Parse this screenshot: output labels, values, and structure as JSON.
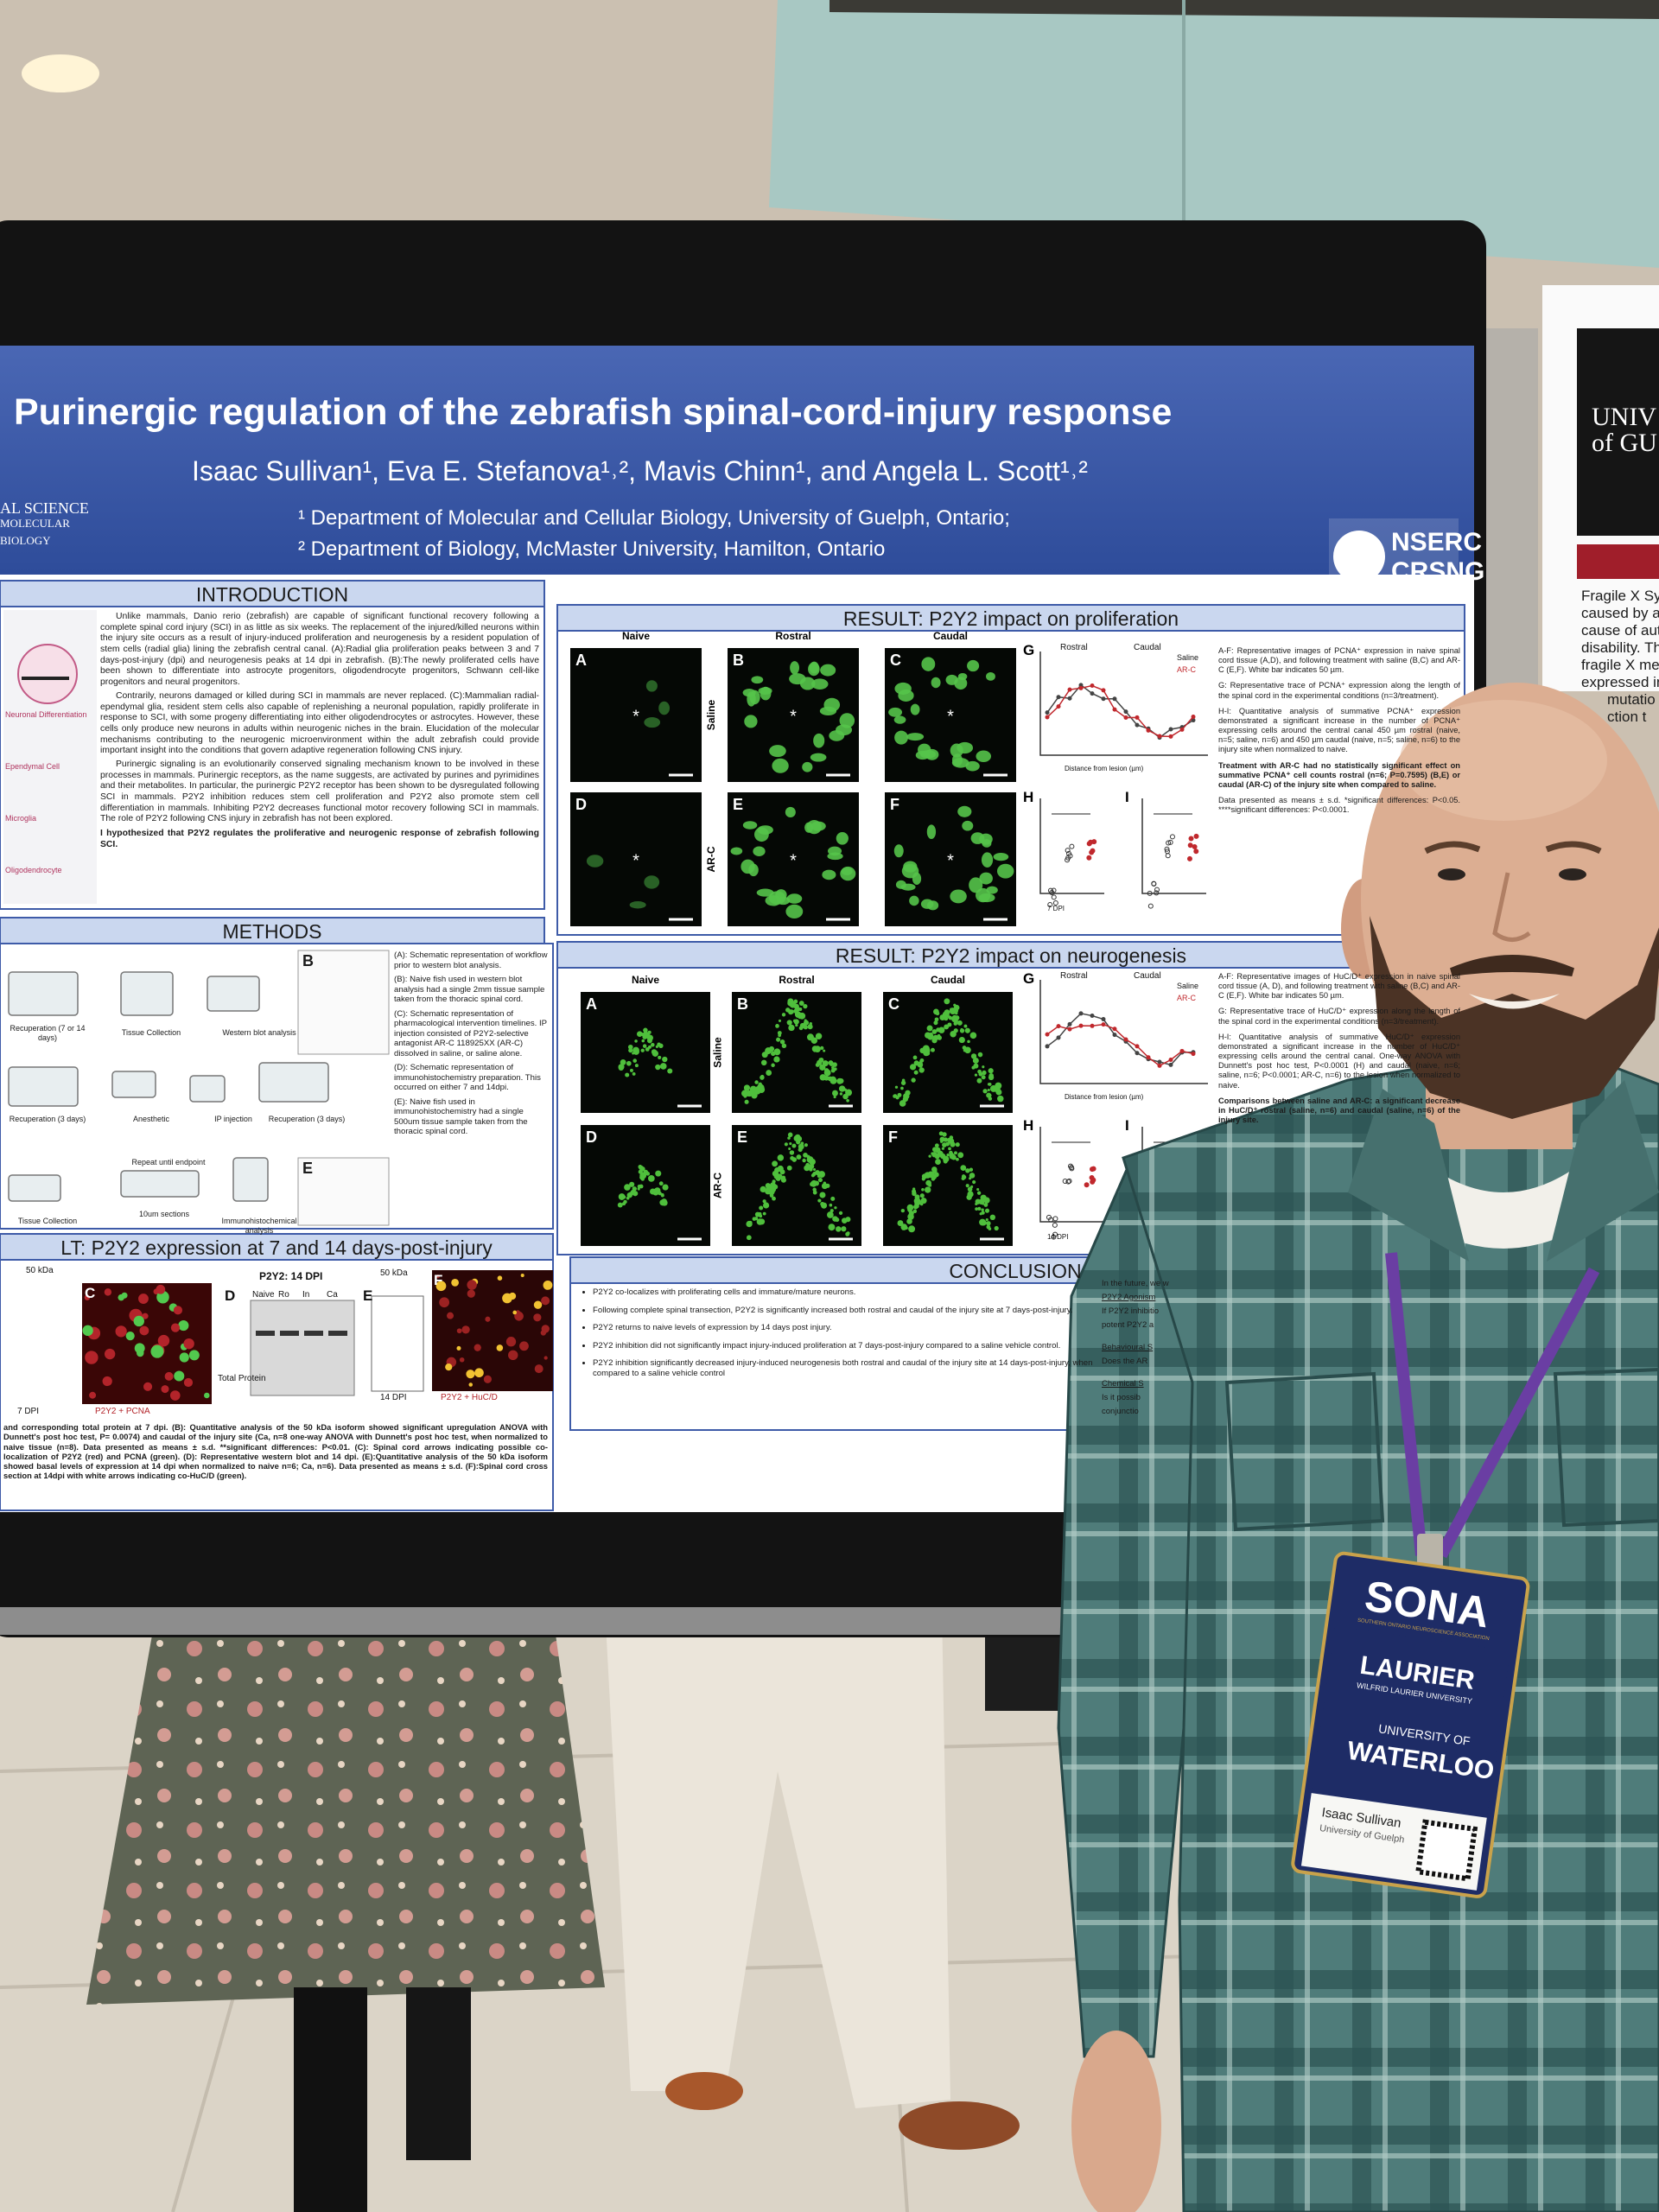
{
  "poster": {
    "title": "Purinergic regulation of the zebrafish spinal-cord-injury response",
    "authors": "Isaac Sullivan¹, Eva E. Stefanova¹˒², Mavis Chinn¹, and Angela L. Scott¹˒²",
    "affiliations": [
      "¹ Department of Molecular and Cellular Biology, University of Guelph, Ontario;",
      "² Department of Biology, McMaster University, Hamilton, Ontario"
    ],
    "left_logo": [
      "AL SCIENCE",
      "MOLECULAR",
      "BIOLOGY"
    ],
    "funder_logo": [
      "NSERC",
      "CRSNG"
    ],
    "introduction": {
      "heading": "INTRODUCTION",
      "paragraphs": [
        "Unlike mammals, Danio rerio (zebrafish) are capable of significant functional recovery following a complete spinal cord injury (SCI) in as little as six weeks. The replacement of the injured/killed neurons within the injury site occurs as a result of injury-induced proliferation and neurogenesis by a resident population of stem cells (radial glia) lining the zebrafish central canal. (A):Radial glia proliferation peaks between 3 and 7 days-post-injury (dpi) and neurogenesis peaks at 14 dpi in zebrafish. (B):The newly proliferated cells have been shown to differentiate into astrocyte progenitors, oligodendrocyte progenitors, Schwann cell-like progenitors and neural progenitors.",
        "Contrarily, neurons damaged or killed during SCI in mammals are never replaced. (C):Mammalian radial-ependymal glia, resident stem cells also capable of replenishing a neuronal population, rapidly proliferate in response to SCI, with some progeny differentiating into either oligodendrocytes or astrocytes. However, these cells only produce new neurons in adults within neurogenic niches in the brain. Elucidation of the molecular mechanisms contributing to the neurogenic microenvironment within the adult zebrafish could provide important insight into the conditions that govern adaptive regeneration following CNS injury.",
        "Purinergic signaling is an evolutionarily conserved signaling mechanism known to be involved in these processes in mammals. Purinergic receptors, as the name suggests, are activated by purines and pyrimidines and their metabolites. In particular, the purinergic P2Y2 receptor has been shown to be dysregulated following SCI in mammals. P2Y2 inhibition reduces stem cell proliferation and P2Y2 also promote stem cell differentiation in mammals. Inhibiting P2Y2 decreases functional motor recovery following SCI in mammals. The role of P2Y2 following CNS injury in zebrafish has not been explored."
      ],
      "hypothesis": "I hypothesized that P2Y2 regulates the proliferative and neurogenic response of zebrafish following SCI.",
      "figure_labels": [
        "Neuronal Differentiation",
        "Ependymal Cell",
        "Microglia",
        "Oligodendrocyte"
      ]
    },
    "methods": {
      "heading": "METHODS",
      "steps": [
        "Recuperation (7 or 14 days)",
        "Tissue Collection",
        "Western blot analysis",
        "Recuperation (3 days)",
        "Anesthetic",
        "IP injection",
        "Recuperation (3 days)",
        "Repeat until endpoint",
        "Tissue Collection",
        "10um sections",
        "Immunohistochemical analysis"
      ],
      "panel_letters": [
        "B",
        "E"
      ],
      "notes": [
        "(A): Schematic representation of workflow prior to western blot analysis.",
        "(B): Naive fish used in western blot analysis had a single 2mm tissue sample taken from the thoracic spinal cord.",
        "(C): Schematic representation of pharmacological intervention timelines. IP injection consisted of P2Y2-selective antagonist AR-C 118925XX (AR-C) dissolved in saline, or saline alone.",
        "(D): Schematic representation of immunohistochemistry preparation. This occurred on either 7 and 14dpi.",
        "(E): Naive fish used in immunohistochemistry had a single 500um tissue sample taken from the thoracic spinal cord."
      ]
    },
    "proliferation": {
      "heading": "RESULT: P2Y2 impact on proliferation",
      "columns": [
        "Naive",
        "Rostral",
        "Caudal"
      ],
      "rows": [
        "Saline",
        "AR-C"
      ],
      "panels": [
        "A",
        "B",
        "C",
        "D",
        "E",
        "F"
      ],
      "center_marker": "*",
      "graph_labels": [
        "G",
        "H",
        "I"
      ],
      "graph_text": [
        "Rostral",
        "Caudal",
        "Saline",
        "AR-C",
        "Distance from lesion (µm)",
        "7 DPI"
      ],
      "notes": [
        "A-F: Representative images of PCNA⁺ expression in naive spinal cord tissue (A,D), and following treatment with saline (B,C) and AR-C (E,F). White bar indicates 50 µm.",
        "G: Representative trace of PCNA⁺ expression along the length of the spinal cord in the experimental conditions (n=3/treatment).",
        "H-I: Quantitative analysis of summative PCNA⁺ expression demonstrated a significant increase in the number of PCNA⁺ expressing cells around the central canal 450 µm rostral (naive, n=5; saline, n=6) and 450 µm caudal (naive, n=5; saline, n=6) to the injury site when normalized to naive.",
        "Treatment with AR-C had no statistically significant effect on summative PCNA⁺ cell counts rostral (n=6; P=0.7595) (B,E) or caudal (AR-C) of the injury site when compared to saline.",
        "Data presented as means ± s.d. *significant differences: P<0.05. ****significant differences: P<0.0001."
      ]
    },
    "neurogenesis": {
      "heading": "RESULT: P2Y2 impact on neurogenesis",
      "columns": [
        "Naive",
        "Rostral",
        "Caudal"
      ],
      "rows": [
        "Saline",
        "AR-C"
      ],
      "panels": [
        "A",
        "B",
        "C",
        "D",
        "E",
        "F"
      ],
      "graph_labels": [
        "G",
        "H",
        "I"
      ],
      "graph_text": [
        "Rostral",
        "Caudal",
        "Saline",
        "AR-C",
        "Distance from lesion (µm)",
        "14 DPI"
      ],
      "notes": [
        "A-F: Representative images of HuC/D⁺ expression in naive spinal cord tissue (A, D), and following treatment with saline (B,C) and AR-C (E,F). White bar indicates 50 µm.",
        "G: Representative trace of HuC/D⁺ expression along the length of the spinal cord in the experimental conditions (n=3/treatment).",
        "H-I: Quantitative analysis of summative HuC/D⁺ expression demonstrated a significant increase in the number of HuC/D⁺ expressing cells around the central canal. One-way ANOVA with Dunnett's post hoc test, P<0.0001 (H) and caudal (naive, n=6; saline, n=6; P<0.0001; AR-C, n=6) to the lesion when normalized to naive.",
        "Comparisons between saline and AR-C: a significant decrease in HuC/D⁺ rostral (saline, n=6) and caudal (saline, n=6) of the injury site."
      ]
    },
    "expression": {
      "heading": "LT: P2Y2 expression at 7 and 14 days-post-injury",
      "panel_letters": [
        "C",
        "D",
        "E",
        "F"
      ],
      "labels": [
        "50 kDa",
        "7 DPI",
        "P2Y2 + PCNA",
        "P2Y2: 14 DPI",
        "Naive",
        "Ro",
        "In",
        "Ca",
        "Total Protein",
        "50 kDa",
        "14 DPI",
        "P2Y2 + HuC/D"
      ],
      "caption": "and corresponding total protein at 7 dpi. (B): Quantitative analysis of the 50 kDa isoform showed significant upregulation ANOVA with Dunnett's post hoc test, P= 0.0074) and caudal of the injury site (Ca, n=8 one-way ANOVA with Dunnett's post hoc test, when normalized to naive tissue (n=8). Data presented as means ± s.d. **significant differences: P<0.01. (C): Spinal cord arrows indicating possible co-localization of P2Y2 (red) and PCNA (green). (D): Representative western blot and 14 dpi. (E):Quantitative analysis of the 50 kDa isoform showed basal levels of expression at 14 dpi when normalized to naive n=6; Ca, n=6). Data presented as means ± s.d. (F):Spinal cord cross section at 14dpi with white arrows indicating co-HuC/D (green)."
    },
    "conclusion": {
      "heading": "CONCLUSION",
      "bullets": [
        "P2Y2 co-localizes with proliferating cells and immature/mature neurons.",
        "Following complete spinal transection, P2Y2 is significantly increased both rostral and caudal of the injury site at 7 days-post-injury.",
        "P2Y2 returns to naive levels of expression by 14 days post injury.",
        "P2Y2 inhibition did not significantly impact injury-induced proliferation at 7 days-post-injury compared to a saline vehicle control.",
        "P2Y2 inhibition significantly decreased injury-induced neurogenesis both rostral and caudal of the injury site at 14 days-post-injury, when compared to a saline vehicle control"
      ],
      "future": [
        "In the future, we w",
        "P2Y2 Agonism",
        "If P2Y2 inhibitio",
        "potent P2Y2 a",
        "Behavioural S",
        "Does the AR",
        "Chemical S",
        "Is it possib",
        "conjunctio"
      ]
    }
  },
  "badge": {
    "event": "SONA",
    "event_subtitle": "SOUTHERN ONTARIO NEUROSCIENCE ASSOCIATION",
    "lines": [
      "LAURIER",
      "WILFRID LAURIER UNIVERSITY",
      "UNIVERSITY OF",
      "WATERLOO"
    ],
    "name": "Isaac Sullivan",
    "affiliation": "University of Guelph"
  },
  "side_poster": {
    "logo": [
      "UNIV",
      "of GU"
    ],
    "lines": [
      "Fragile X Sy",
      "caused by a",
      "cause of aut",
      "disability. Th",
      "fragile X me",
      "expressed in",
      "mutatio",
      "ction t"
    ]
  }
}
